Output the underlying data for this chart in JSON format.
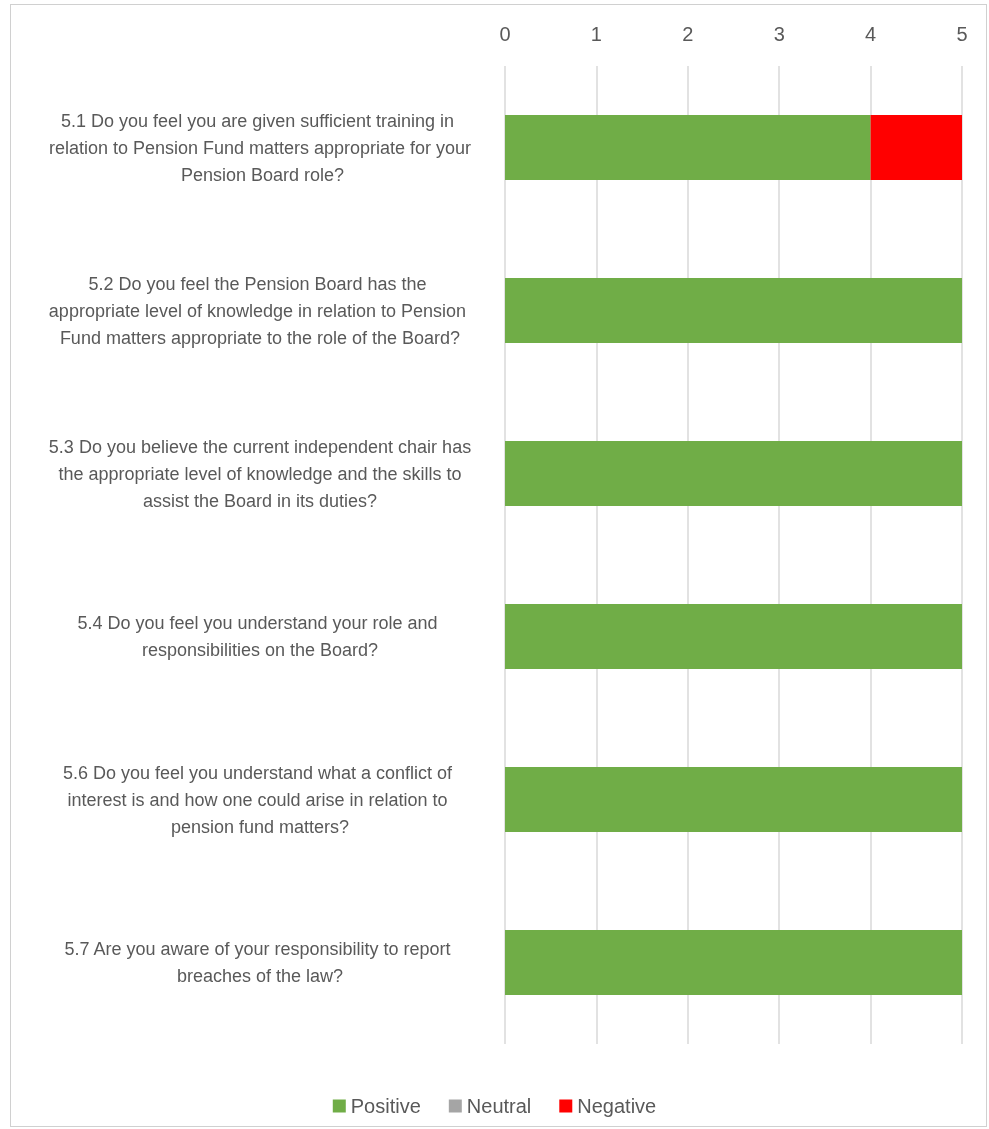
{
  "chart_data": {
    "type": "bar",
    "orientation": "horizontal",
    "stacked": true,
    "categories": [
      "5.1 Do you feel you are given sufficient training in relation to Pension Fund matters appropriate for your Pension Board role?",
      "5.2 Do you feel the Pension Board has the appropriate level of knowledge in relation to Pension Fund matters appropriate to the role of the Board?",
      "5.3 Do you believe the current independent chair has the appropriate level of knowledge and the skills to assist the Board in its duties?",
      "5.4 Do you feel you understand your role and responsibilities on the Board?",
      "5.6 Do you feel you understand what a conflict of interest is and how one could arise in relation to pension fund matters?",
      "5.7 Are you aware of your responsibility to report breaches of the law?"
    ],
    "series": [
      {
        "name": "Positive",
        "color": "#70ad47",
        "values": [
          4,
          5,
          5,
          5,
          5,
          5
        ]
      },
      {
        "name": "Neutral",
        "color": "#a5a5a5",
        "values": [
          0,
          0,
          0,
          0,
          0,
          0
        ]
      },
      {
        "name": "Negative",
        "color": "#ff0000",
        "values": [
          1,
          0,
          0,
          0,
          0,
          0
        ]
      }
    ],
    "xlim": [
      0,
      5
    ],
    "xticks": [
      0,
      1,
      2,
      3,
      4,
      5
    ],
    "grid": "x",
    "legend": "bottom"
  }
}
